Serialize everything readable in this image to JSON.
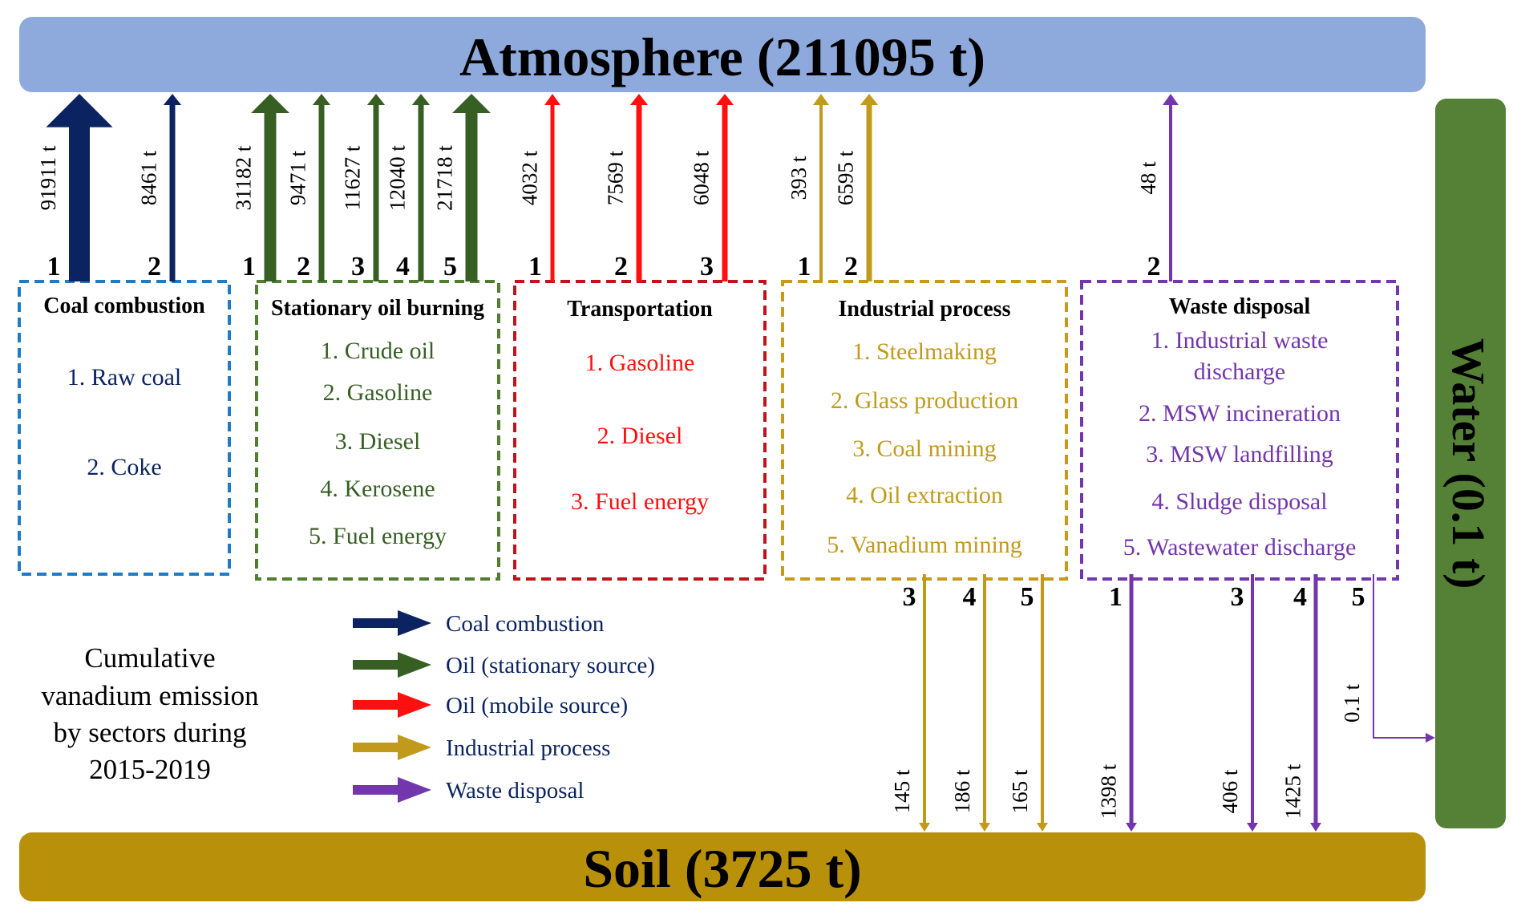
{
  "sinks": {
    "atmosphere": "Atmosphere (211095 t)",
    "soil": "Soil (3725 t)",
    "water": "Water (0.1 t)"
  },
  "sectors": [
    {
      "id": "coal",
      "title": "Coal combustion",
      "color": "#0b2461",
      "border": "#1f7bc4",
      "text_color": "#0b2461",
      "items": [
        "1. Raw coal",
        "2. Coke"
      ]
    },
    {
      "id": "stationary-oil",
      "title": "Stationary oil burning",
      "color": "#375f24",
      "border": "#4f7f2e",
      "text_color": "#375f24",
      "items": [
        "1. Crude oil",
        "2. Gasoline",
        "3. Diesel",
        "4. Kerosene",
        "5. Fuel energy"
      ]
    },
    {
      "id": "transportation",
      "title": "Transportation",
      "color": "#ff1010",
      "border": "#c0141c",
      "text_color": "#ff1010",
      "items": [
        "1. Gasoline",
        "2. Diesel",
        "3. Fuel energy"
      ]
    },
    {
      "id": "industrial",
      "title": "Industrial process",
      "color": "#c19a1b",
      "border": "#c99a1a",
      "text_color": "#c19a1b",
      "items": [
        "1. Steelmaking",
        "2. Glass production",
        "3. Coal mining",
        "4. Oil extraction",
        "5. Vanadium mining"
      ]
    },
    {
      "id": "waste",
      "title": "Waste disposal",
      "color": "#7336ac",
      "border": "#7336ac",
      "text_color": "#7336ac",
      "items": [
        "1. Industrial waste discharge",
        "2. MSW incineration",
        "3. MSW landfilling",
        "4. Sludge disposal",
        "5. Wastewater discharge"
      ]
    }
  ],
  "flows_to_atmosphere": [
    {
      "sector": "coal",
      "num": "1",
      "value": "91911 t",
      "tons": 91911
    },
    {
      "sector": "coal",
      "num": "2",
      "value": "8461 t",
      "tons": 8461
    },
    {
      "sector": "stationary-oil",
      "num": "1",
      "value": "31182 t",
      "tons": 31182
    },
    {
      "sector": "stationary-oil",
      "num": "2",
      "value": "9471 t",
      "tons": 9471
    },
    {
      "sector": "stationary-oil",
      "num": "3",
      "value": "11627 t",
      "tons": 11627
    },
    {
      "sector": "stationary-oil",
      "num": "4",
      "value": "12040 t",
      "tons": 12040
    },
    {
      "sector": "stationary-oil",
      "num": "5",
      "value": "21718 t",
      "tons": 21718
    },
    {
      "sector": "transportation",
      "num": "1",
      "value": "4032 t",
      "tons": 4032
    },
    {
      "sector": "transportation",
      "num": "2",
      "value": "7569 t",
      "tons": 7569
    },
    {
      "sector": "transportation",
      "num": "3",
      "value": "6048 t",
      "tons": 6048
    },
    {
      "sector": "industrial",
      "num": "1",
      "value": "393 t",
      "tons": 393
    },
    {
      "sector": "industrial",
      "num": "2",
      "value": "6595 t",
      "tons": 6595
    },
    {
      "sector": "waste",
      "num": "2",
      "value": "48 t",
      "tons": 48
    }
  ],
  "flows_to_soil": [
    {
      "sector": "industrial",
      "num": "3",
      "value": "145 t",
      "tons": 145
    },
    {
      "sector": "industrial",
      "num": "4",
      "value": "186 t",
      "tons": 186
    },
    {
      "sector": "industrial",
      "num": "5",
      "value": "165 t",
      "tons": 165
    },
    {
      "sector": "waste",
      "num": "1",
      "value": "1398 t",
      "tons": 1398
    },
    {
      "sector": "waste",
      "num": "3",
      "value": "406 t",
      "tons": 406
    },
    {
      "sector": "waste",
      "num": "4",
      "value": "1425 t",
      "tons": 1425
    }
  ],
  "flows_to_water": [
    {
      "sector": "waste",
      "num": "5",
      "value": "0.1 t",
      "tons": 0.1
    }
  ],
  "legend": [
    {
      "label": "Coal combustion",
      "color": "#0b2461"
    },
    {
      "label": "Oil (stationary source)",
      "color": "#375f24"
    },
    {
      "label": "Oil (mobile source)",
      "color": "#ff1010"
    },
    {
      "label": "Industrial process",
      "color": "#c19a1b"
    },
    {
      "label": "Waste disposal",
      "color": "#7336ac"
    }
  ],
  "caption_lines": [
    "Cumulative",
    "vanadium emission",
    "by sectors during",
    "2015-2019"
  ],
  "colors": {
    "atmosphere_bar": "#8eaadc",
    "soil_bar": "#b8900a",
    "water_bar": "#548135",
    "legend_text": "#0b2461"
  }
}
